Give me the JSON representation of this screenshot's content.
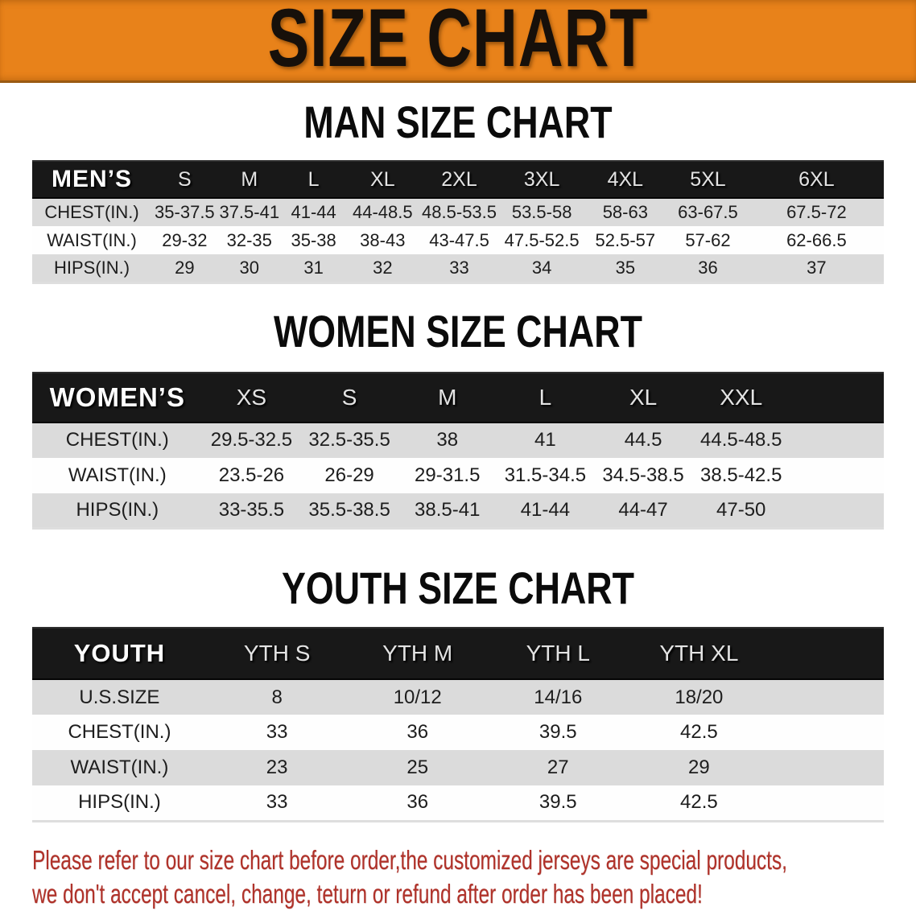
{
  "banner": {
    "title": "SIZE CHART"
  },
  "colors": {
    "banner_bg": "#E8821A",
    "table_header_bg": "#181818",
    "row_stripe": "#DBDBDB",
    "disclaimer_text": "#B0322A"
  },
  "sections": [
    {
      "heading": "MAN SIZE CHART",
      "corner_label": "MEN’S",
      "columns": [
        "S",
        "M",
        "L",
        "XL",
        "2XL",
        "3XL",
        "4XL",
        "5XL",
        "6XL"
      ],
      "rows": [
        {
          "label": "CHEST(IN.)",
          "values": [
            "35-37.5",
            "37.5-41",
            "41-44",
            "44-48.5",
            "48.5-53.5",
            "53.5-58",
            "58-63",
            "63-67.5",
            "67.5-72"
          ]
        },
        {
          "label": "WAIST(IN.)",
          "values": [
            "29-32",
            "32-35",
            "35-38",
            "38-43",
            "43-47.5",
            "47.5-52.5",
            "52.5-57",
            "57-62",
            "62-66.5"
          ]
        },
        {
          "label": "HIPS(IN.)",
          "values": [
            "29",
            "30",
            "31",
            "32",
            "33",
            "34",
            "35",
            "36",
            "37"
          ]
        }
      ]
    },
    {
      "heading": "WOMEN SIZE CHART",
      "corner_label": "WOMEN’S",
      "columns": [
        "XS",
        "S",
        "M",
        "L",
        "XL",
        "XXL"
      ],
      "rows": [
        {
          "label": "CHEST(IN.)",
          "values": [
            "29.5-32.5",
            "32.5-35.5",
            "38",
            "41",
            "44.5",
            "44.5-48.5"
          ]
        },
        {
          "label": "WAIST(IN.)",
          "values": [
            "23.5-26",
            "26-29",
            "29-31.5",
            "31.5-34.5",
            "34.5-38.5",
            "38.5-42.5"
          ]
        },
        {
          "label": "HIPS(IN.)",
          "values": [
            "33-35.5",
            "35.5-38.5",
            "38.5-41",
            "41-44",
            "44-47",
            "47-50"
          ]
        }
      ]
    },
    {
      "heading": "YOUTH SIZE CHART",
      "corner_label": "YOUTH",
      "columns": [
        "YTH S",
        "YTH M",
        "YTH L",
        "YTH XL"
      ],
      "rows": [
        {
          "label": "U.S.SIZE",
          "values": [
            "8",
            "10/12",
            "14/16",
            "18/20"
          ]
        },
        {
          "label": "CHEST(IN.)",
          "values": [
            "33",
            "36",
            "39.5",
            "42.5"
          ]
        },
        {
          "label": "WAIST(IN.)",
          "values": [
            "23",
            "25",
            "27",
            "29"
          ]
        },
        {
          "label": "HIPS(IN.)",
          "values": [
            "33",
            "36",
            "39.5",
            "42.5"
          ]
        }
      ]
    }
  ],
  "disclaimer": {
    "line1": "Please refer to our size chart before order,the customized jerseys are special products,",
    "line2": "we don't accept cancel, change, teturn or refund after order has been placed!"
  }
}
